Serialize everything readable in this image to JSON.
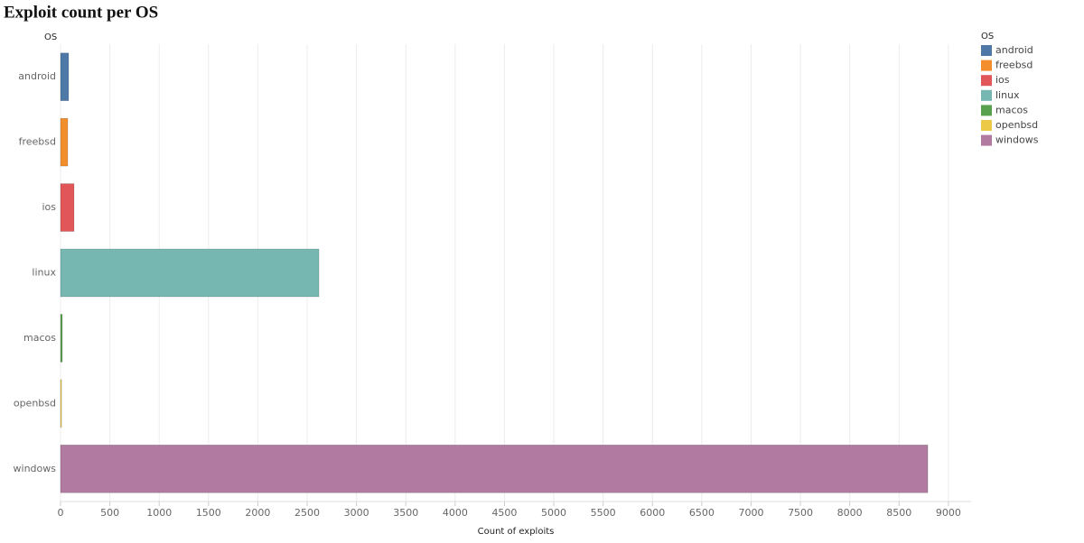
{
  "chart_data": {
    "type": "bar",
    "orientation": "horizontal",
    "title": "Exploit count per OS",
    "y_label": "OS",
    "x_label": "Count of exploits",
    "legend_title": "OS",
    "categories": [
      "android",
      "freebsd",
      "ios",
      "linux",
      "macos",
      "openbsd",
      "windows"
    ],
    "values": [
      82,
      73,
      137,
      2619,
      18,
      10,
      8791
    ],
    "colors": [
      "#4e79a7",
      "#f28e2b",
      "#e15759",
      "#76b7b2",
      "#59a14f",
      "#edc948",
      "#b07aa1"
    ],
    "xlim": [
      0,
      9230
    ],
    "xticks": [
      0,
      500,
      1000,
      1500,
      2000,
      2500,
      3000,
      3500,
      4000,
      4500,
      5000,
      5500,
      6000,
      6500,
      7000,
      7500,
      8000,
      8500,
      9000
    ],
    "grid": true,
    "legend": "top-right"
  }
}
